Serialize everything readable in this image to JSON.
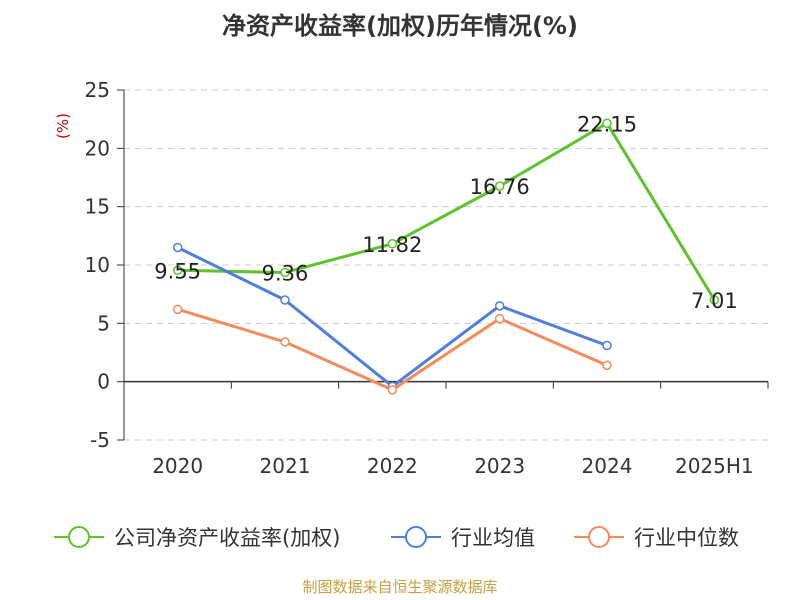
{
  "chart_data": {
    "type": "line",
    "title": "净资产收益率(加权)历年情况(%)",
    "ylabel": "(%)",
    "categories": [
      "2020",
      "2021",
      "2022",
      "2023",
      "2024",
      "2025H1"
    ],
    "ylim": [
      -5,
      25
    ],
    "yticks": [
      -5,
      0,
      5,
      10,
      15,
      20,
      25
    ],
    "grid": true,
    "legend_placement": "bottom",
    "series": [
      {
        "name": "公司净资产收益率(加权)",
        "color": "#5ac42a",
        "values": [
          9.55,
          9.36,
          11.82,
          16.76,
          22.15,
          7.01
        ],
        "labels": [
          "9.55",
          "9.36",
          "11.82",
          "16.76",
          "22.15",
          "7.01"
        ]
      },
      {
        "name": "行业均值",
        "color": "#4e7fdd",
        "values": [
          11.5,
          7.0,
          -0.4,
          6.5,
          3.1,
          null
        ]
      },
      {
        "name": "行业中位数",
        "color": "#f58b5a",
        "values": [
          6.2,
          3.4,
          -0.7,
          5.4,
          1.4,
          null
        ]
      }
    ]
  },
  "source": "制图数据来自恒生聚源数据库"
}
